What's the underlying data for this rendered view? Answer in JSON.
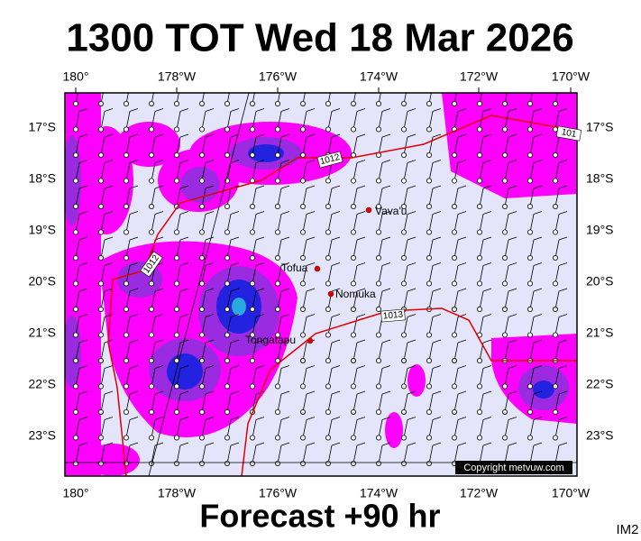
{
  "header": {
    "title": "1300 TOT Wed 18 Mar 2026"
  },
  "footer": {
    "forecast": "Forecast +90 hr",
    "image_id": "IM2"
  },
  "map": {
    "lon_labels": [
      "180°",
      "178°W",
      "176°W",
      "174°W",
      "172°W",
      "170°W"
    ],
    "lat_labels": [
      "17°S",
      "18°S",
      "19°S",
      "20°S",
      "21°S",
      "22°S",
      "23°S"
    ],
    "places": [
      {
        "name": "Vava'u"
      },
      {
        "name": "Tofua"
      },
      {
        "name": "Nomuka"
      },
      {
        "name": "Tongatapu"
      }
    ],
    "isobar_labels": [
      "1012",
      "1012",
      "1013",
      "101"
    ],
    "copyright": "Copyright metvuw.com"
  }
}
